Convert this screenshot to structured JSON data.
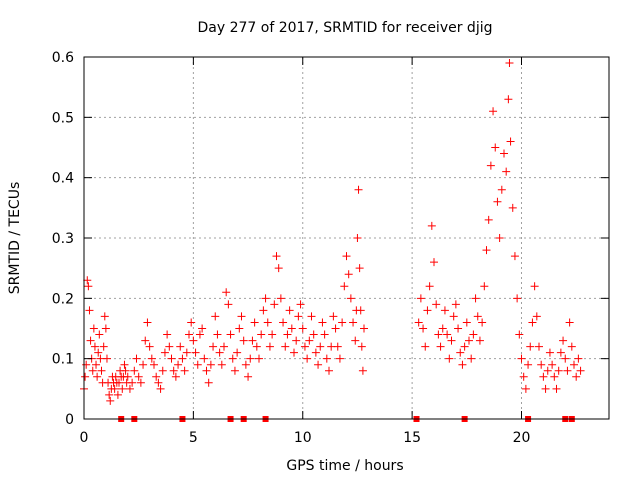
{
  "chart_data": {
    "type": "scatter",
    "title": "Day 277 of 2017, SRMTID for receiver djig",
    "xlabel": "GPS time / hours",
    "ylabel": "SRMTID / TECUs",
    "xlim": [
      0,
      24
    ],
    "ylim": [
      0,
      0.6
    ],
    "xticks": [
      0,
      5,
      10,
      15,
      20
    ],
    "xtick_labels": [
      "0",
      "5",
      "10",
      "15",
      "20"
    ],
    "yticks": [
      0,
      0.1,
      0.2,
      0.3,
      0.4,
      0.5,
      0.6
    ],
    "ytick_labels": [
      "0",
      "0.1",
      "0.2",
      "0.3",
      "0.4",
      "0.5",
      "0.6"
    ],
    "grid": true,
    "marker": "+",
    "color": "#ff0000",
    "series": [
      {
        "name": "SRMTID",
        "points": [
          [
            0.0,
            0.05
          ],
          [
            0.05,
            0.07
          ],
          [
            0.1,
            0.09
          ],
          [
            0.15,
            0.23
          ],
          [
            0.2,
            0.22
          ],
          [
            0.25,
            0.18
          ],
          [
            0.3,
            0.13
          ],
          [
            0.35,
            0.1
          ],
          [
            0.4,
            0.08
          ],
          [
            0.45,
            0.15
          ],
          [
            0.5,
            0.12
          ],
          [
            0.55,
            0.09
          ],
          [
            0.6,
            0.07
          ],
          [
            0.65,
            0.11
          ],
          [
            0.7,
            0.14
          ],
          [
            0.75,
            0.1
          ],
          [
            0.8,
            0.08
          ],
          [
            0.85,
            0.06
          ],
          [
            0.9,
            0.12
          ],
          [
            0.95,
            0.17
          ],
          [
            1.0,
            0.15
          ],
          [
            1.05,
            0.1
          ],
          [
            1.1,
            0.06
          ],
          [
            1.15,
            0.04
          ],
          [
            1.2,
            0.03
          ],
          [
            1.25,
            0.05
          ],
          [
            1.3,
            0.07
          ],
          [
            1.35,
            0.06
          ],
          [
            1.4,
            0.05
          ],
          [
            1.45,
            0.07
          ],
          [
            1.5,
            0.06
          ],
          [
            1.55,
            0.04
          ],
          [
            1.6,
            0.06
          ],
          [
            1.65,
            0.08
          ],
          [
            1.7,
            0.07
          ],
          [
            1.75,
            0.05
          ],
          [
            1.8,
            0.07
          ],
          [
            1.85,
            0.09
          ],
          [
            1.9,
            0.08
          ],
          [
            1.95,
            0.06
          ],
          [
            2.0,
            0.07
          ],
          [
            2.1,
            0.05
          ],
          [
            2.2,
            0.06
          ],
          [
            2.3,
            0.08
          ],
          [
            2.4,
            0.1
          ],
          [
            2.5,
            0.07
          ],
          [
            2.6,
            0.06
          ],
          [
            2.7,
            0.09
          ],
          [
            2.8,
            0.13
          ],
          [
            2.9,
            0.16
          ],
          [
            3.0,
            0.12
          ],
          [
            3.1,
            0.1
          ],
          [
            3.2,
            0.09
          ],
          [
            3.3,
            0.07
          ],
          [
            3.4,
            0.06
          ],
          [
            3.5,
            0.05
          ],
          [
            3.6,
            0.08
          ],
          [
            3.7,
            0.11
          ],
          [
            3.8,
            0.14
          ],
          [
            3.9,
            0.12
          ],
          [
            4.0,
            0.1
          ],
          [
            4.1,
            0.08
          ],
          [
            4.2,
            0.07
          ],
          [
            4.3,
            0.09
          ],
          [
            4.4,
            0.12
          ],
          [
            4.5,
            0.1
          ],
          [
            4.6,
            0.08
          ],
          [
            4.7,
            0.11
          ],
          [
            4.8,
            0.14
          ],
          [
            4.9,
            0.16
          ],
          [
            5.0,
            0.13
          ],
          [
            5.1,
            0.11
          ],
          [
            5.2,
            0.09
          ],
          [
            5.3,
            0.14
          ],
          [
            5.4,
            0.15
          ],
          [
            5.5,
            0.1
          ],
          [
            5.6,
            0.08
          ],
          [
            5.7,
            0.06
          ],
          [
            5.8,
            0.09
          ],
          [
            5.9,
            0.12
          ],
          [
            6.0,
            0.17
          ],
          [
            6.1,
            0.14
          ],
          [
            6.2,
            0.11
          ],
          [
            6.3,
            0.09
          ],
          [
            6.4,
            0.12
          ],
          [
            6.5,
            0.21
          ],
          [
            6.6,
            0.19
          ],
          [
            6.7,
            0.14
          ],
          [
            6.8,
            0.1
          ],
          [
            6.9,
            0.08
          ],
          [
            7.0,
            0.11
          ],
          [
            7.1,
            0.15
          ],
          [
            7.2,
            0.17
          ],
          [
            7.3,
            0.13
          ],
          [
            7.4,
            0.09
          ],
          [
            7.5,
            0.07
          ],
          [
            7.6,
            0.1
          ],
          [
            7.7,
            0.13
          ],
          [
            7.8,
            0.16
          ],
          [
            7.9,
            0.12
          ],
          [
            8.0,
            0.1
          ],
          [
            8.1,
            0.14
          ],
          [
            8.2,
            0.18
          ],
          [
            8.3,
            0.2
          ],
          [
            8.4,
            0.16
          ],
          [
            8.5,
            0.12
          ],
          [
            8.6,
            0.14
          ],
          [
            8.7,
            0.19
          ],
          [
            8.8,
            0.27
          ],
          [
            8.9,
            0.25
          ],
          [
            9.0,
            0.2
          ],
          [
            9.1,
            0.16
          ],
          [
            9.2,
            0.12
          ],
          [
            9.3,
            0.14
          ],
          [
            9.4,
            0.18
          ],
          [
            9.5,
            0.15
          ],
          [
            9.6,
            0.11
          ],
          [
            9.7,
            0.13
          ],
          [
            9.8,
            0.17
          ],
          [
            9.9,
            0.19
          ],
          [
            10.0,
            0.15
          ],
          [
            10.1,
            0.12
          ],
          [
            10.2,
            0.1
          ],
          [
            10.3,
            0.13
          ],
          [
            10.4,
            0.17
          ],
          [
            10.5,
            0.14
          ],
          [
            10.6,
            0.11
          ],
          [
            10.7,
            0.09
          ],
          [
            10.8,
            0.12
          ],
          [
            10.9,
            0.16
          ],
          [
            11.0,
            0.14
          ],
          [
            11.1,
            0.1
          ],
          [
            11.2,
            0.08
          ],
          [
            11.3,
            0.12
          ],
          [
            11.4,
            0.17
          ],
          [
            11.5,
            0.15
          ],
          [
            11.6,
            0.12
          ],
          [
            11.7,
            0.1
          ],
          [
            11.8,
            0.16
          ],
          [
            11.9,
            0.22
          ],
          [
            12.0,
            0.27
          ],
          [
            12.1,
            0.24
          ],
          [
            12.2,
            0.2
          ],
          [
            12.3,
            0.16
          ],
          [
            12.4,
            0.13
          ],
          [
            12.45,
            0.18
          ],
          [
            12.5,
            0.3
          ],
          [
            12.55,
            0.38
          ],
          [
            12.6,
            0.25
          ],
          [
            12.65,
            0.18
          ],
          [
            12.7,
            0.12
          ],
          [
            12.75,
            0.08
          ],
          [
            12.8,
            0.15
          ],
          [
            15.3,
            0.16
          ],
          [
            15.4,
            0.2
          ],
          [
            15.5,
            0.15
          ],
          [
            15.6,
            0.12
          ],
          [
            15.7,
            0.18
          ],
          [
            15.8,
            0.22
          ],
          [
            15.9,
            0.32
          ],
          [
            16.0,
            0.26
          ],
          [
            16.1,
            0.19
          ],
          [
            16.2,
            0.14
          ],
          [
            16.3,
            0.12
          ],
          [
            16.4,
            0.15
          ],
          [
            16.5,
            0.18
          ],
          [
            16.6,
            0.14
          ],
          [
            16.7,
            0.1
          ],
          [
            16.8,
            0.13
          ],
          [
            16.9,
            0.17
          ],
          [
            17.0,
            0.19
          ],
          [
            17.1,
            0.15
          ],
          [
            17.2,
            0.11
          ],
          [
            17.3,
            0.09
          ],
          [
            17.4,
            0.12
          ],
          [
            17.5,
            0.16
          ],
          [
            17.6,
            0.13
          ],
          [
            17.7,
            0.1
          ],
          [
            17.8,
            0.14
          ],
          [
            17.9,
            0.2
          ],
          [
            18.0,
            0.17
          ],
          [
            18.1,
            0.13
          ],
          [
            18.2,
            0.16
          ],
          [
            18.3,
            0.22
          ],
          [
            18.4,
            0.28
          ],
          [
            18.5,
            0.33
          ],
          [
            18.6,
            0.42
          ],
          [
            18.7,
            0.51
          ],
          [
            18.8,
            0.45
          ],
          [
            18.9,
            0.36
          ],
          [
            19.0,
            0.3
          ],
          [
            19.1,
            0.38
          ],
          [
            19.2,
            0.44
          ],
          [
            19.3,
            0.41
          ],
          [
            19.4,
            0.53
          ],
          [
            19.45,
            0.59
          ],
          [
            19.5,
            0.46
          ],
          [
            19.6,
            0.35
          ],
          [
            19.7,
            0.27
          ],
          [
            19.8,
            0.2
          ],
          [
            19.9,
            0.14
          ],
          [
            20.0,
            0.1
          ],
          [
            20.1,
            0.07
          ],
          [
            20.2,
            0.05
          ],
          [
            20.3,
            0.09
          ],
          [
            20.4,
            0.12
          ],
          [
            20.5,
            0.16
          ],
          [
            20.6,
            0.22
          ],
          [
            20.7,
            0.17
          ],
          [
            20.8,
            0.12
          ],
          [
            20.9,
            0.09
          ],
          [
            21.0,
            0.07
          ],
          [
            21.1,
            0.05
          ],
          [
            21.2,
            0.08
          ],
          [
            21.3,
            0.11
          ],
          [
            21.4,
            0.09
          ],
          [
            21.5,
            0.07
          ],
          [
            21.6,
            0.05
          ],
          [
            21.7,
            0.08
          ],
          [
            21.8,
            0.11
          ],
          [
            21.9,
            0.13
          ],
          [
            22.0,
            0.1
          ],
          [
            22.1,
            0.08
          ],
          [
            22.2,
            0.16
          ],
          [
            22.3,
            0.12
          ],
          [
            22.4,
            0.09
          ],
          [
            22.5,
            0.07
          ],
          [
            22.6,
            0.1
          ],
          [
            22.7,
            0.08
          ]
        ]
      }
    ],
    "zero_markers_x": [
      1.7,
      2.3,
      4.5,
      6.7,
      7.3,
      8.3,
      15.2,
      17.4,
      20.3,
      22.0,
      22.3
    ]
  }
}
